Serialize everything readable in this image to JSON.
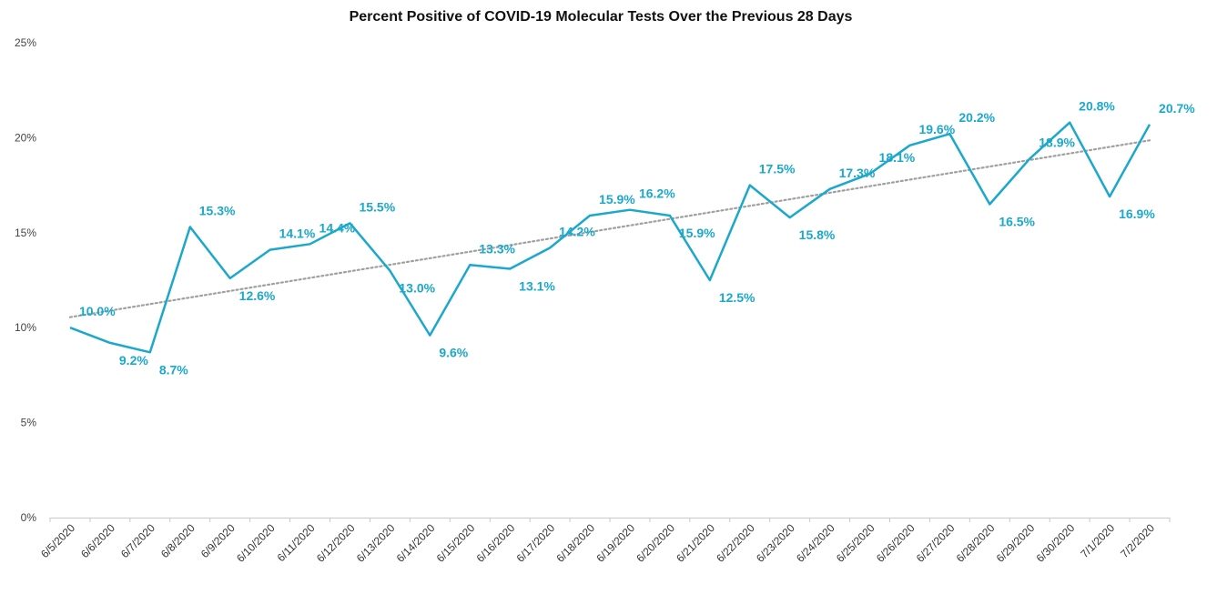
{
  "chart_data": {
    "type": "line",
    "title": "Percent Positive of COVID-19 Molecular Tests Over the Previous 28 Days",
    "xlabel": "",
    "ylabel": "",
    "y_tick_labels": [
      "0%",
      "5%",
      "10%",
      "15%",
      "20%",
      "25%"
    ],
    "ylim": [
      0,
      25
    ],
    "grid": false,
    "legend": "none",
    "categories": [
      "6/5/2020",
      "6/6/2020",
      "6/7/2020",
      "6/8/2020",
      "6/9/2020",
      "6/10/2020",
      "6/11/2020",
      "6/12/2020",
      "6/13/2020",
      "6/14/2020",
      "6/15/2020",
      "6/16/2020",
      "6/17/2020",
      "6/18/2020",
      "6/19/2020",
      "6/20/2020",
      "6/21/2020",
      "6/22/2020",
      "6/23/2020",
      "6/24/2020",
      "6/25/2020",
      "6/26/2020",
      "6/27/2020",
      "6/28/2020",
      "6/29/2020",
      "6/30/2020",
      "7/1/2020",
      "7/2/2020"
    ],
    "series": [
      {
        "values": [
          10.0,
          9.2,
          8.7,
          15.3,
          12.6,
          14.1,
          14.4,
          15.5,
          13.0,
          9.6,
          13.3,
          13.1,
          14.2,
          15.9,
          16.2,
          15.9,
          12.5,
          17.5,
          15.8,
          17.3,
          18.1,
          19.6,
          20.2,
          16.5,
          18.9,
          20.8,
          16.9,
          20.7
        ],
        "data_labels": [
          "10.0%",
          "9.2%",
          "8.7%",
          "15.3%",
          "12.6%",
          "14.1%",
          "14.4%",
          "15.5%",
          "13.0%",
          "9.6%",
          "13.3%",
          "13.1%",
          "14.2%",
          "15.9%",
          "16.2%",
          "15.9%",
          "12.5%",
          "17.5%",
          "15.8%",
          "17.3%",
          "18.1%",
          "19.6%",
          "20.2%",
          "16.5%",
          "18.9%",
          "20.8%",
          "16.9%",
          "20.7%"
        ],
        "color": "#1ba8cb"
      }
    ],
    "trendline": {
      "type": "linear",
      "style": "dotted",
      "color": "#a0a0a0"
    }
  }
}
